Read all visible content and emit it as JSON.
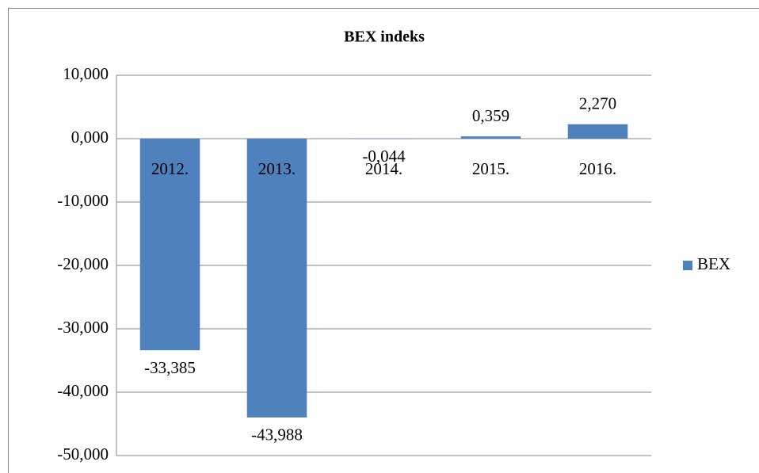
{
  "chart_data": {
    "type": "bar",
    "title": "BEX indeks",
    "categories": [
      "2012.",
      "2013.",
      "2014.",
      "2015.",
      "2016."
    ],
    "series": [
      {
        "name": "BEX",
        "color": "#4f81bd",
        "values": [
          -33.385,
          -43.988,
          -0.044,
          0.359,
          2.27
        ],
        "value_labels": [
          "-33,385",
          "-43,988",
          "-0,044",
          "0,359",
          "2,270"
        ]
      }
    ],
    "ylim": [
      -50,
      10
    ],
    "yticks": [
      {
        "value": -50,
        "label": "-50,000"
      },
      {
        "value": -40,
        "label": "-40,000"
      },
      {
        "value": -30,
        "label": "-30,000"
      },
      {
        "value": -20,
        "label": "-20,000"
      },
      {
        "value": -10,
        "label": "-10,000"
      },
      {
        "value": 0,
        "label": "0,000"
      },
      {
        "value": 10,
        "label": "10,000"
      }
    ],
    "grid": true,
    "legend": "right"
  }
}
